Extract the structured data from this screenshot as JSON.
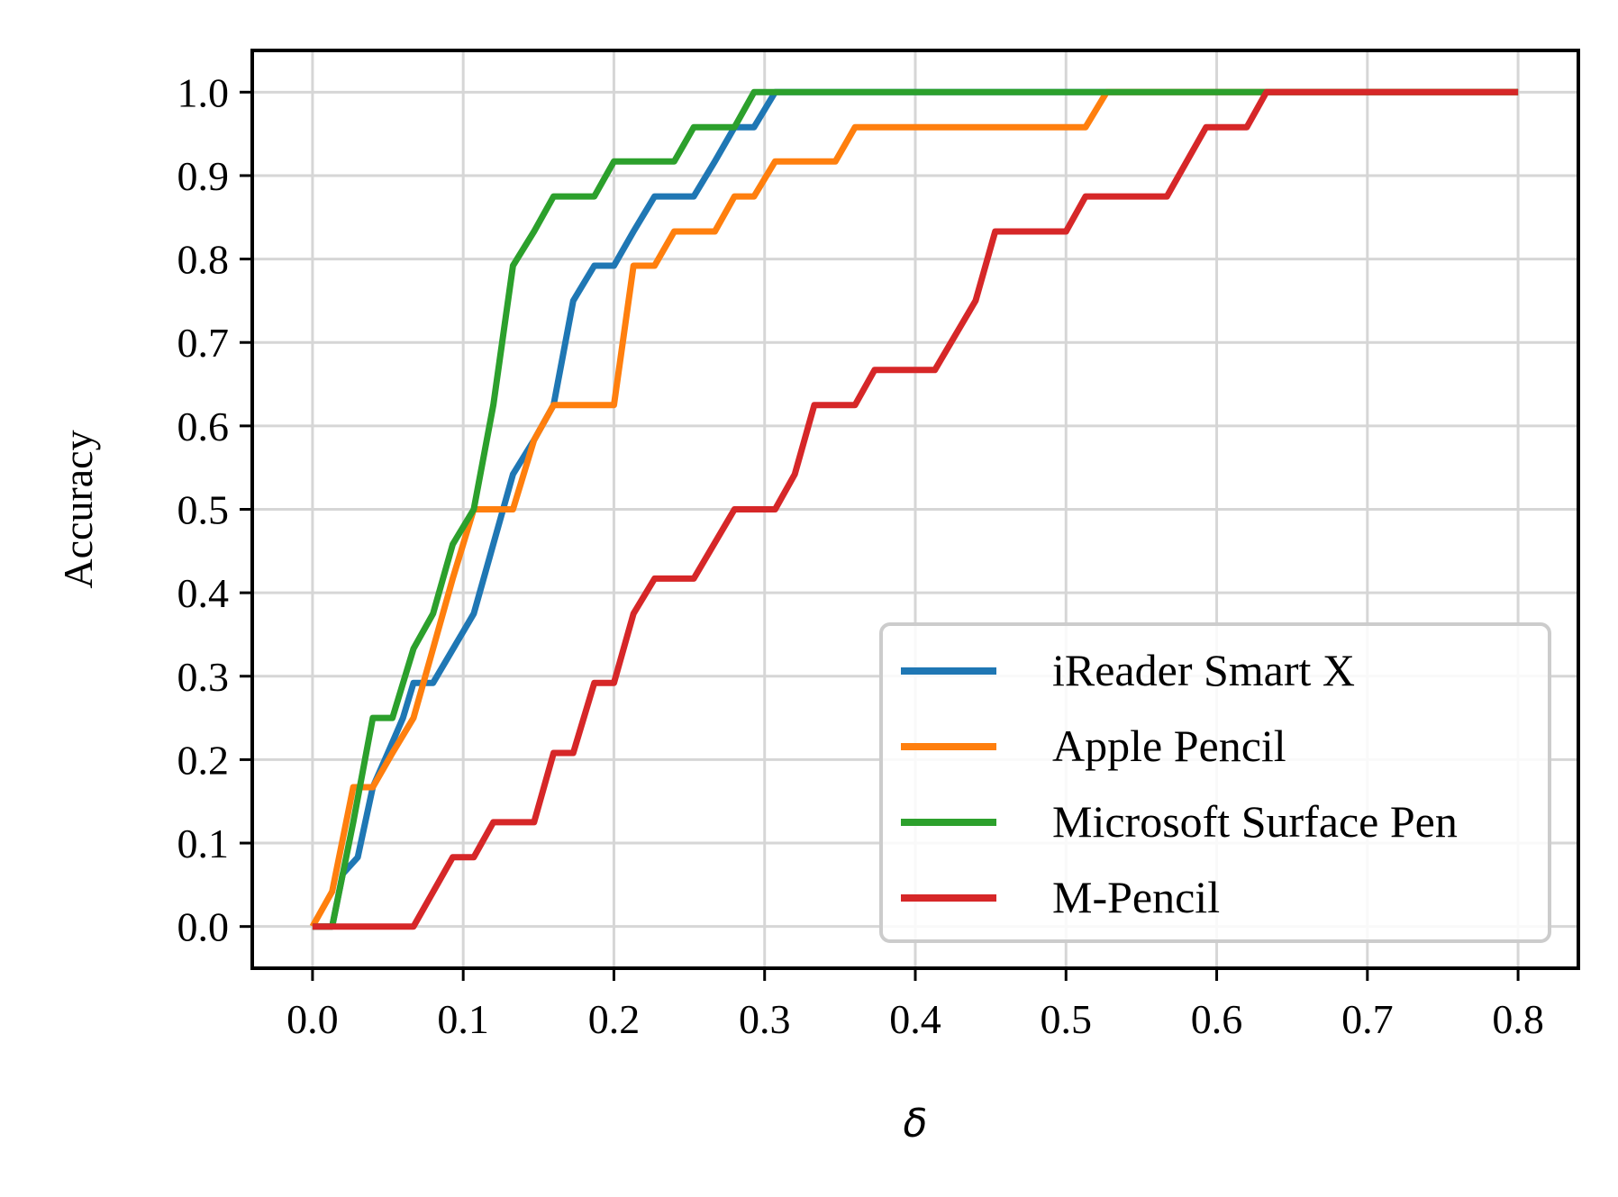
{
  "chart_data": {
    "type": "line",
    "title": "",
    "xlabel": "δ",
    "ylabel": "Accuracy",
    "xlim": [
      -0.04,
      0.84
    ],
    "ylim": [
      -0.05,
      1.05
    ],
    "xticks": [
      "0.0",
      "0.1",
      "0.2",
      "0.3",
      "0.4",
      "0.5",
      "0.6",
      "0.7",
      "0.8"
    ],
    "yticks": [
      "0.0",
      "0.1",
      "0.2",
      "0.3",
      "0.4",
      "0.5",
      "0.6",
      "0.7",
      "0.8",
      "0.9",
      "1.0"
    ],
    "grid": true,
    "legend_position": "lower-right",
    "series": [
      {
        "name": "iReader Smart X",
        "color": "#1f77b4",
        "points": [
          [
            0.0,
            0.0
          ],
          [
            0.013,
            0.0
          ],
          [
            0.02,
            0.063
          ],
          [
            0.03,
            0.083
          ],
          [
            0.04,
            0.167
          ],
          [
            0.05,
            0.208
          ],
          [
            0.06,
            0.25
          ],
          [
            0.067,
            0.292
          ],
          [
            0.08,
            0.292
          ],
          [
            0.107,
            0.375
          ],
          [
            0.133,
            0.542
          ],
          [
            0.147,
            0.583
          ],
          [
            0.16,
            0.625
          ],
          [
            0.173,
            0.75
          ],
          [
            0.187,
            0.792
          ],
          [
            0.2,
            0.792
          ],
          [
            0.213,
            0.833
          ],
          [
            0.227,
            0.875
          ],
          [
            0.253,
            0.875
          ],
          [
            0.267,
            0.917
          ],
          [
            0.28,
            0.958
          ],
          [
            0.293,
            0.958
          ],
          [
            0.307,
            1.0
          ],
          [
            0.8,
            1.0
          ]
        ]
      },
      {
        "name": "Apple Pencil",
        "color": "#ff7f0e",
        "points": [
          [
            0.0,
            0.0
          ],
          [
            0.013,
            0.042
          ],
          [
            0.027,
            0.167
          ],
          [
            0.04,
            0.167
          ],
          [
            0.053,
            0.208
          ],
          [
            0.067,
            0.25
          ],
          [
            0.08,
            0.333
          ],
          [
            0.093,
            0.417
          ],
          [
            0.107,
            0.5
          ],
          [
            0.133,
            0.5
          ],
          [
            0.147,
            0.583
          ],
          [
            0.16,
            0.625
          ],
          [
            0.2,
            0.625
          ],
          [
            0.213,
            0.792
          ],
          [
            0.227,
            0.792
          ],
          [
            0.24,
            0.833
          ],
          [
            0.267,
            0.833
          ],
          [
            0.28,
            0.875
          ],
          [
            0.293,
            0.875
          ],
          [
            0.307,
            0.917
          ],
          [
            0.347,
            0.917
          ],
          [
            0.36,
            0.958
          ],
          [
            0.513,
            0.958
          ],
          [
            0.527,
            1.0
          ],
          [
            0.8,
            1.0
          ]
        ]
      },
      {
        "name": "Microsoft Surface Pen",
        "color": "#2ca02c",
        "points": [
          [
            0.0,
            0.0
          ],
          [
            0.013,
            0.0
          ],
          [
            0.027,
            0.125
          ],
          [
            0.04,
            0.25
          ],
          [
            0.053,
            0.25
          ],
          [
            0.067,
            0.333
          ],
          [
            0.08,
            0.375
          ],
          [
            0.093,
            0.458
          ],
          [
            0.107,
            0.5
          ],
          [
            0.12,
            0.625
          ],
          [
            0.133,
            0.792
          ],
          [
            0.147,
            0.833
          ],
          [
            0.16,
            0.875
          ],
          [
            0.187,
            0.875
          ],
          [
            0.2,
            0.917
          ],
          [
            0.24,
            0.917
          ],
          [
            0.253,
            0.958
          ],
          [
            0.28,
            0.958
          ],
          [
            0.293,
            1.0
          ],
          [
            0.8,
            1.0
          ]
        ]
      },
      {
        "name": "M-Pencil",
        "color": "#d62728",
        "points": [
          [
            0.0,
            0.0
          ],
          [
            0.067,
            0.0
          ],
          [
            0.093,
            0.083
          ],
          [
            0.107,
            0.083
          ],
          [
            0.12,
            0.125
          ],
          [
            0.147,
            0.125
          ],
          [
            0.16,
            0.208
          ],
          [
            0.173,
            0.208
          ],
          [
            0.187,
            0.292
          ],
          [
            0.2,
            0.292
          ],
          [
            0.213,
            0.375
          ],
          [
            0.227,
            0.417
          ],
          [
            0.253,
            0.417
          ],
          [
            0.28,
            0.5
          ],
          [
            0.307,
            0.5
          ],
          [
            0.32,
            0.542
          ],
          [
            0.333,
            0.625
          ],
          [
            0.36,
            0.625
          ],
          [
            0.373,
            0.667
          ],
          [
            0.413,
            0.667
          ],
          [
            0.44,
            0.75
          ],
          [
            0.453,
            0.833
          ],
          [
            0.5,
            0.833
          ],
          [
            0.513,
            0.875
          ],
          [
            0.567,
            0.875
          ],
          [
            0.593,
            0.958
          ],
          [
            0.62,
            0.958
          ],
          [
            0.633,
            1.0
          ],
          [
            0.8,
            1.0
          ]
        ]
      }
    ]
  }
}
